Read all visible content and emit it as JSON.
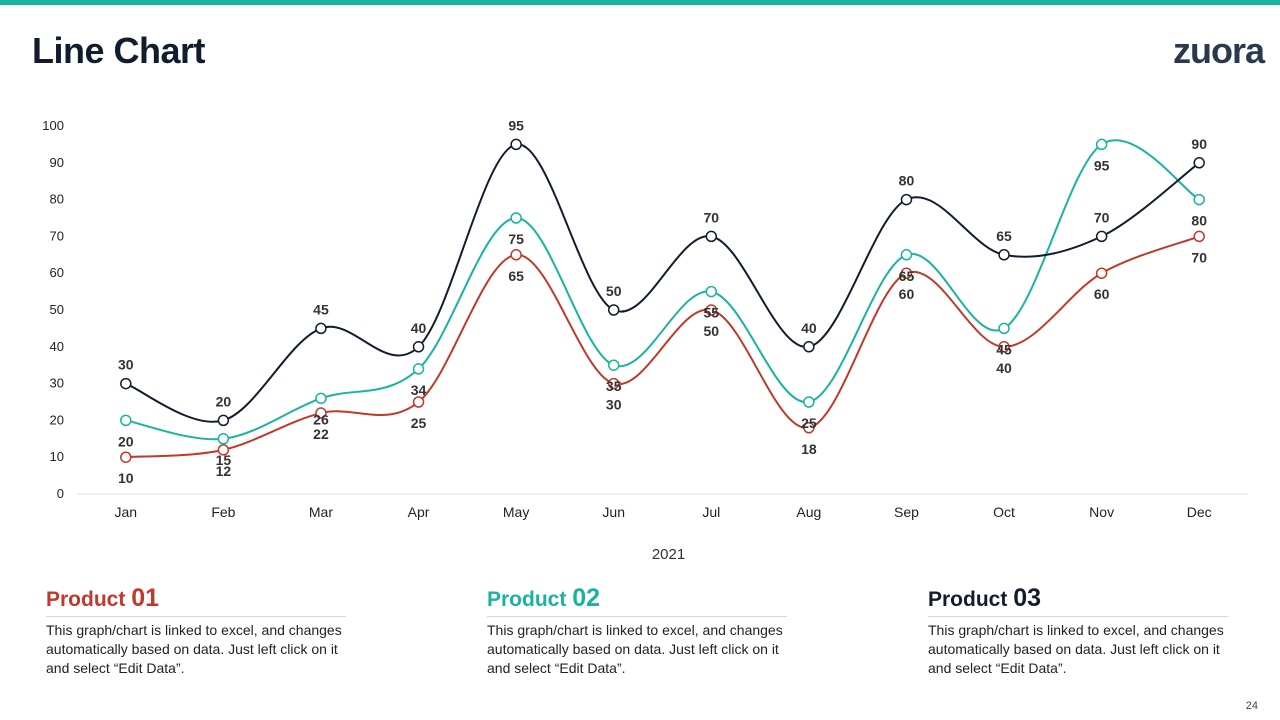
{
  "slide": {
    "title": "Line Chart",
    "logo": "zuora",
    "page_number": "24"
  },
  "colors": {
    "accent_bar": "#1ab3a0",
    "product1": "#c0392b",
    "product2": "#1ab3a0",
    "product3": "#111d2e"
  },
  "products": [
    {
      "name": "Product",
      "number": "01",
      "color": "#c0392b",
      "description": "This graph/chart is linked to excel, and changes automatically based on data. Just left click on it and select “Edit Data”."
    },
    {
      "name": "Product",
      "number": "02",
      "color": "#1ab3a0",
      "description": "This graph/chart is linked to excel, and changes automatically based on data. Just left click on it and select “Edit Data”."
    },
    {
      "name": "Product",
      "number": "03",
      "color": "#111d2e",
      "description": "This graph/chart is linked to excel, and changes automatically based on data. Just left click on it and select “Edit Data”."
    }
  ],
  "chart_data": {
    "type": "line",
    "title": "",
    "xlabel": "2021",
    "ylabel": "",
    "ylim": [
      0,
      100
    ],
    "yticks": [
      0,
      10,
      20,
      30,
      40,
      50,
      60,
      70,
      80,
      90,
      100
    ],
    "grid": false,
    "categories": [
      "Jan",
      "Feb",
      "Mar",
      "Apr",
      "May",
      "Jun",
      "Jul",
      "Aug",
      "Sep",
      "Oct",
      "Nov",
      "Dec"
    ],
    "series": [
      {
        "name": "Product 01",
        "color": "#c0392b",
        "label_position": "below",
        "values": [
          10,
          12,
          22,
          25,
          65,
          30,
          50,
          18,
          60,
          40,
          60,
          70
        ]
      },
      {
        "name": "Product 02",
        "color": "#1ab3a0",
        "label_position": "below",
        "values": [
          20,
          15,
          26,
          34,
          75,
          35,
          55,
          25,
          65,
          45,
          95,
          80
        ]
      },
      {
        "name": "Product 03",
        "color": "#111d2e",
        "label_position": "above",
        "values": [
          30,
          20,
          45,
          40,
          95,
          50,
          70,
          40,
          80,
          65,
          70,
          90
        ]
      }
    ]
  }
}
